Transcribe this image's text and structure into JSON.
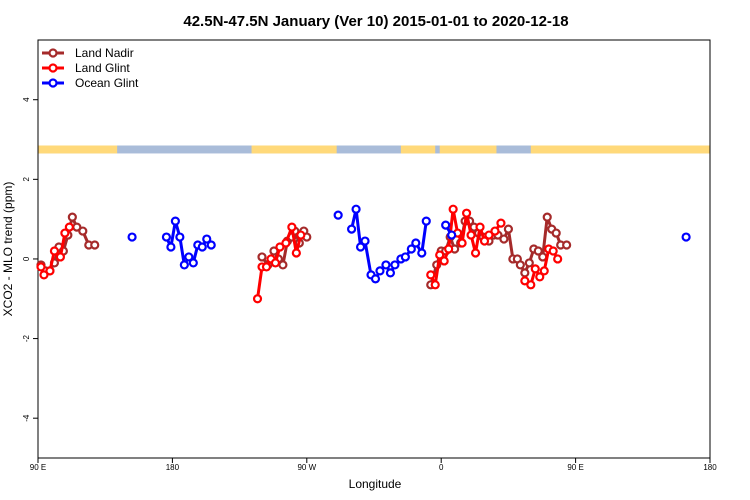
{
  "chart_data": {
    "type": "line",
    "title": "42.5N-47.5N January (Ver 10)   2015-01-01 to 2020-12-18",
    "xlabel": "Longitude",
    "ylabel": "XCO2 - MLO trend (ppm)",
    "xlim": [
      90,
      540
    ],
    "ylim": [
      -5,
      5.5
    ],
    "x_ticks": [
      {
        "value": 90,
        "label": "90 E"
      },
      {
        "value": 180,
        "label": "180"
      },
      {
        "value": 270,
        "label": "90 W"
      },
      {
        "value": 360,
        "label": "0"
      },
      {
        "value": 450,
        "label": "90 E"
      },
      {
        "value": 540,
        "label": "180"
      }
    ],
    "y_ticks": [
      {
        "value": -4,
        "label": "-4"
      },
      {
        "value": -2,
        "label": "-2"
      },
      {
        "value": 0,
        "label": "0"
      },
      {
        "value": 2,
        "label": "2"
      },
      {
        "value": 4,
        "label": "4"
      }
    ],
    "legend_position": "top-left",
    "land_ocean_band": {
      "y_range": [
        2.65,
        2.85
      ],
      "land_color": "#FFD97A",
      "ocean_color": "#A9BCD9",
      "land_x": [
        [
          90,
          143
        ],
        [
          233,
          290
        ],
        [
          333,
          356
        ],
        [
          359,
          397
        ],
        [
          420,
          540
        ]
      ]
    },
    "series": [
      {
        "name": "Land Nadir",
        "color": "#A52A2A",
        "segments": [
          [
            [
              92,
              -0.15
            ],
            [
              95,
              -0.3
            ],
            [
              98,
              -0.3
            ],
            [
              101,
              -0.1
            ],
            [
              104,
              0.3
            ],
            [
              107,
              0.2
            ],
            [
              110,
              0.6
            ],
            [
              113,
              1.05
            ],
            [
              116,
              0.8
            ],
            [
              120,
              0.7
            ],
            [
              124,
              0.35
            ],
            [
              128,
              0.35
            ]
          ],
          [
            [
              240,
              0.05
            ],
            [
              244,
              -0.15
            ],
            [
              248,
              0.2
            ],
            [
              251,
              0
            ],
            [
              254,
              -0.15
            ],
            [
              257,
              0.45
            ],
            [
              260,
              0.55
            ],
            [
              262,
              0.7
            ],
            [
              265,
              0.4
            ],
            [
              268,
              0.7
            ],
            [
              270,
              0.55
            ]
          ],
          [
            [
              353,
              -0.65
            ],
            [
              357,
              -0.15
            ],
            [
              360,
              0.2
            ],
            [
              363,
              0.2
            ],
            [
              366,
              0.55
            ],
            [
              369,
              0.25
            ],
            [
              373,
              0.4
            ],
            [
              376,
              0.95
            ],
            [
              379,
              0.95
            ],
            [
              382,
              0.8
            ],
            [
              385,
              0.65
            ],
            [
              388,
              0.55
            ],
            [
              392,
              0.45
            ],
            [
              395,
              0.6
            ],
            [
              398,
              0.6
            ],
            [
              402,
              0.5
            ],
            [
              405,
              0.75
            ],
            [
              408,
              0
            ],
            [
              411,
              0
            ],
            [
              413,
              -0.15
            ],
            [
              416,
              -0.35
            ],
            [
              419,
              -0.1
            ],
            [
              422,
              0.25
            ],
            [
              425,
              0.2
            ],
            [
              428,
              0.05
            ],
            [
              431,
              1.05
            ],
            [
              434,
              0.75
            ],
            [
              437,
              0.65
            ],
            [
              440,
              0.35
            ],
            [
              444,
              0.35
            ]
          ]
        ]
      },
      {
        "name": "Land Glint",
        "color": "#FF0000",
        "segments": [
          [
            [
              92,
              -0.2
            ],
            [
              94,
              -0.4
            ],
            [
              98,
              -0.3
            ],
            [
              101,
              0.2
            ],
            [
              105,
              0.05
            ],
            [
              108,
              0.65
            ],
            [
              111,
              0.8
            ]
          ],
          [
            [
              237,
              -1.0
            ],
            [
              240,
              -0.2
            ],
            [
              243,
              -0.2
            ],
            [
              246,
              0
            ],
            [
              249,
              -0.1
            ],
            [
              252,
              0.3
            ],
            [
              256,
              0.4
            ],
            [
              260,
              0.8
            ],
            [
              263,
              0.15
            ],
            [
              266,
              0.6
            ]
          ],
          [
            [
              353,
              -0.4
            ],
            [
              356,
              -0.65
            ],
            [
              359,
              0.1
            ],
            [
              362,
              -0.05
            ],
            [
              365,
              0.25
            ],
            [
              368,
              1.25
            ],
            [
              371,
              0.65
            ],
            [
              374,
              0.4
            ],
            [
              377,
              1.15
            ],
            [
              380,
              0.6
            ],
            [
              383,
              0.15
            ],
            [
              386,
              0.8
            ],
            [
              389,
              0.45
            ],
            [
              392,
              0.6
            ],
            [
              396,
              0.7
            ],
            [
              400,
              0.9
            ]
          ],
          [
            [
              416,
              -0.55
            ],
            [
              420,
              -0.65
            ],
            [
              423,
              -0.25
            ],
            [
              426,
              -0.45
            ],
            [
              429,
              -0.3
            ],
            [
              432,
              0.25
            ],
            [
              435,
              0.2
            ],
            [
              438,
              0
            ]
          ]
        ]
      },
      {
        "name": "Ocean Glint",
        "color": "#0000FF",
        "segments": [
          [
            [
              153,
              0.55
            ]
          ],
          [
            [
              176,
              0.55
            ],
            [
              179,
              0.3
            ],
            [
              182,
              0.95
            ],
            [
              185,
              0.55
            ],
            [
              188,
              -0.15
            ],
            [
              191,
              0.05
            ],
            [
              194,
              -0.1
            ],
            [
              197,
              0.35
            ],
            [
              200,
              0.3
            ],
            [
              203,
              0.5
            ],
            [
              206,
              0.35
            ]
          ],
          [
            [
              291,
              1.1
            ]
          ],
          [
            [
              300,
              0.75
            ],
            [
              303,
              1.25
            ],
            [
              306,
              0.3
            ],
            [
              309,
              0.45
            ],
            [
              313,
              -0.4
            ],
            [
              316,
              -0.5
            ],
            [
              319,
              -0.3
            ],
            [
              323,
              -0.15
            ],
            [
              326,
              -0.35
            ],
            [
              329,
              -0.15
            ],
            [
              333,
              0
            ],
            [
              336,
              0.05
            ],
            [
              340,
              0.25
            ],
            [
              343,
              0.4
            ],
            [
              347,
              0.15
            ],
            [
              350,
              0.95
            ]
          ],
          [
            [
              363,
              0.85
            ],
            [
              367,
              0.6
            ]
          ],
          [
            [
              524,
              0.55
            ]
          ]
        ]
      }
    ]
  }
}
